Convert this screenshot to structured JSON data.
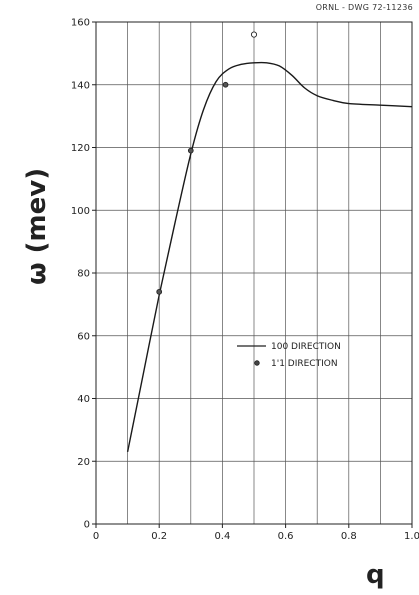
{
  "drawing_number": "ORNL - DWG 72-11236",
  "chart_data": {
    "type": "line",
    "xlabel": "q",
    "ylabel": "ω (mev)",
    "xlim": [
      0,
      1.0
    ],
    "ylim": [
      0,
      160
    ],
    "x_ticks": [
      "0",
      "0.2",
      "0.4",
      "0.6",
      "0.8",
      "1.0"
    ],
    "y_ticks": [
      "0",
      "20",
      "40",
      "60",
      "80",
      "100",
      "120",
      "140",
      "160"
    ],
    "grid": true,
    "legend_position": "center-right",
    "series": [
      {
        "name": "100 DIRECTION",
        "kind": "line",
        "x": [
          0.1,
          0.15,
          0.2,
          0.25,
          0.3,
          0.34,
          0.38,
          0.42,
          0.46,
          0.5,
          0.54,
          0.58,
          0.62,
          0.66,
          0.7,
          0.75,
          0.8,
          0.9,
          1.0
        ],
        "y": [
          23,
          48,
          73,
          96,
          118,
          132,
          141,
          145,
          146.5,
          147,
          147,
          146,
          143,
          139,
          136.5,
          135,
          134,
          133.5,
          133
        ]
      },
      {
        "name": "1'1 DIRECTION",
        "kind": "scatter",
        "x": [
          0.2,
          0.3,
          0.41,
          0.5
        ],
        "y": [
          74,
          119,
          140,
          156
        ]
      }
    ]
  }
}
